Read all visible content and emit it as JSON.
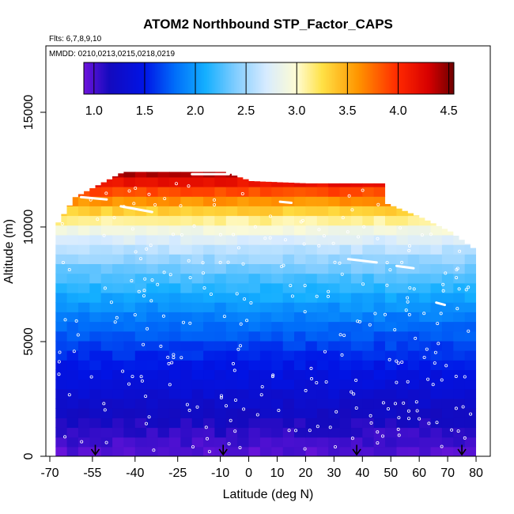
{
  "chart_data": {
    "type": "heatmap",
    "title": "ATOM2 Northbound STP_Factor_CAPS",
    "flights_label": "Flts: 6,7,8,9,10",
    "dates_label": "MMDD: 0210,0213,0215,0218,0219",
    "xlabel": "Latitude (deg N)",
    "ylabel": "Altitude (m)",
    "xlim": [
      -70,
      85
    ],
    "ylim": [
      0,
      18000
    ],
    "x_ticks": [
      -70,
      -55,
      -40,
      -25,
      -10,
      0,
      10,
      20,
      30,
      40,
      50,
      60,
      70,
      80
    ],
    "x_tick_labels": [
      "-70",
      "-55",
      "-40",
      "-25",
      "-10",
      "0",
      "10",
      "20",
      "30",
      "40",
      "50",
      "60",
      "70",
      "80"
    ],
    "y_ticks": [
      0,
      5000,
      10000,
      15000
    ],
    "y_tick_labels": [
      "0",
      "5000",
      "10000",
      "15000"
    ],
    "colorbar": {
      "min": 0.9,
      "max": 4.55,
      "ticks": [
        1.0,
        1.5,
        2.0,
        2.5,
        3.0,
        3.5,
        4.0,
        4.5
      ],
      "tick_labels": [
        "1.0",
        "1.5",
        "2.0",
        "2.5",
        "3.0",
        "3.5",
        "4.0",
        "4.5"
      ]
    },
    "field_description": "STP factor increases with altitude: ~1.0 near surface to ~4.5 near 12000 m",
    "altitude_profile": [
      {
        "alt": 0,
        "value": 0.95
      },
      {
        "alt": 2000,
        "value": 1.2
      },
      {
        "alt": 4000,
        "value": 1.5
      },
      {
        "alt": 6000,
        "value": 1.85
      },
      {
        "alt": 8000,
        "value": 2.3
      },
      {
        "alt": 9500,
        "value": 2.75
      },
      {
        "alt": 10500,
        "value": 3.2
      },
      {
        "alt": 11500,
        "value": 3.85
      },
      {
        "alt": 12300,
        "value": 4.4
      }
    ],
    "coverage_top_by_lat": [
      {
        "lat": -68,
        "alt": 10200
      },
      {
        "lat": -62,
        "alt": 11300
      },
      {
        "lat": -45,
        "alt": 12400
      },
      {
        "lat": -10,
        "alt": 12400
      },
      {
        "lat": 0,
        "alt": 12000
      },
      {
        "lat": 20,
        "alt": 11900
      },
      {
        "lat": 46,
        "alt": 11900
      },
      {
        "lat": 48,
        "alt": 11000
      },
      {
        "lat": 60,
        "alt": 10400
      },
      {
        "lat": 70,
        "alt": 9800
      },
      {
        "lat": 80,
        "alt": 8900
      }
    ],
    "coverage_lat_range": [
      -68,
      80
    ],
    "profile_markers_lat": [
      -54,
      -9,
      38,
      75
    ]
  }
}
